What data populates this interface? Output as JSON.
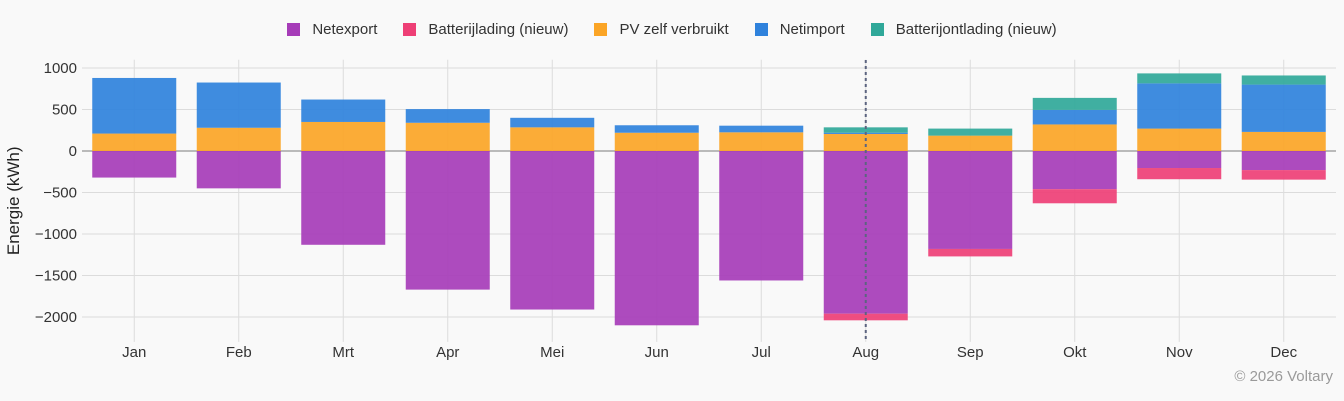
{
  "chart_data": {
    "type": "bar",
    "stacked": true,
    "ylabel": "Energie (kWh)",
    "xlabel": "",
    "ylim": [
      -2300,
      1100
    ],
    "yticks": [
      1000,
      500,
      0,
      -500,
      -1000,
      -1500,
      -2000
    ],
    "ytick_labels": [
      "1000",
      "500",
      "0",
      "−500",
      "−1000",
      "−1500",
      "−2000"
    ],
    "grid": true,
    "legend_position": "top-center",
    "categories": [
      "Jan",
      "Feb",
      "Mrt",
      "Apr",
      "Mei",
      "Jun",
      "Jul",
      "Aug",
      "Sep",
      "Okt",
      "Nov",
      "Dec"
    ],
    "highlight_category": "Aug",
    "series": [
      {
        "name": "Netexport",
        "color": "#a63cb8",
        "stack": "negative",
        "values": [
          -320,
          -450,
          -1130,
          -1670,
          -1910,
          -2100,
          -1560,
          -1960,
          -1180,
          -460,
          -205,
          -230
        ]
      },
      {
        "name": "Batterijlading (nieuw)",
        "color": "#ee3f76",
        "stack": "negative",
        "values": [
          0,
          0,
          0,
          0,
          0,
          0,
          0,
          -80,
          -90,
          -170,
          -135,
          -115
        ]
      },
      {
        "name": "PV zelf verbruikt",
        "color": "#fba526",
        "stack": "positive",
        "values": [
          210,
          280,
          350,
          340,
          285,
          220,
          225,
          205,
          185,
          320,
          270,
          230
        ]
      },
      {
        "name": "Netimport",
        "color": "#2f82dc",
        "stack": "positive",
        "values": [
          670,
          545,
          270,
          165,
          115,
          90,
          80,
          15,
          0,
          175,
          545,
          570
        ]
      },
      {
        "name": "Batterijontlading (nieuw)",
        "color": "#30a899",
        "stack": "positive",
        "values": [
          0,
          0,
          0,
          0,
          0,
          0,
          0,
          65,
          85,
          145,
          120,
          110
        ]
      }
    ]
  },
  "watermark": "© 2026 Voltary"
}
